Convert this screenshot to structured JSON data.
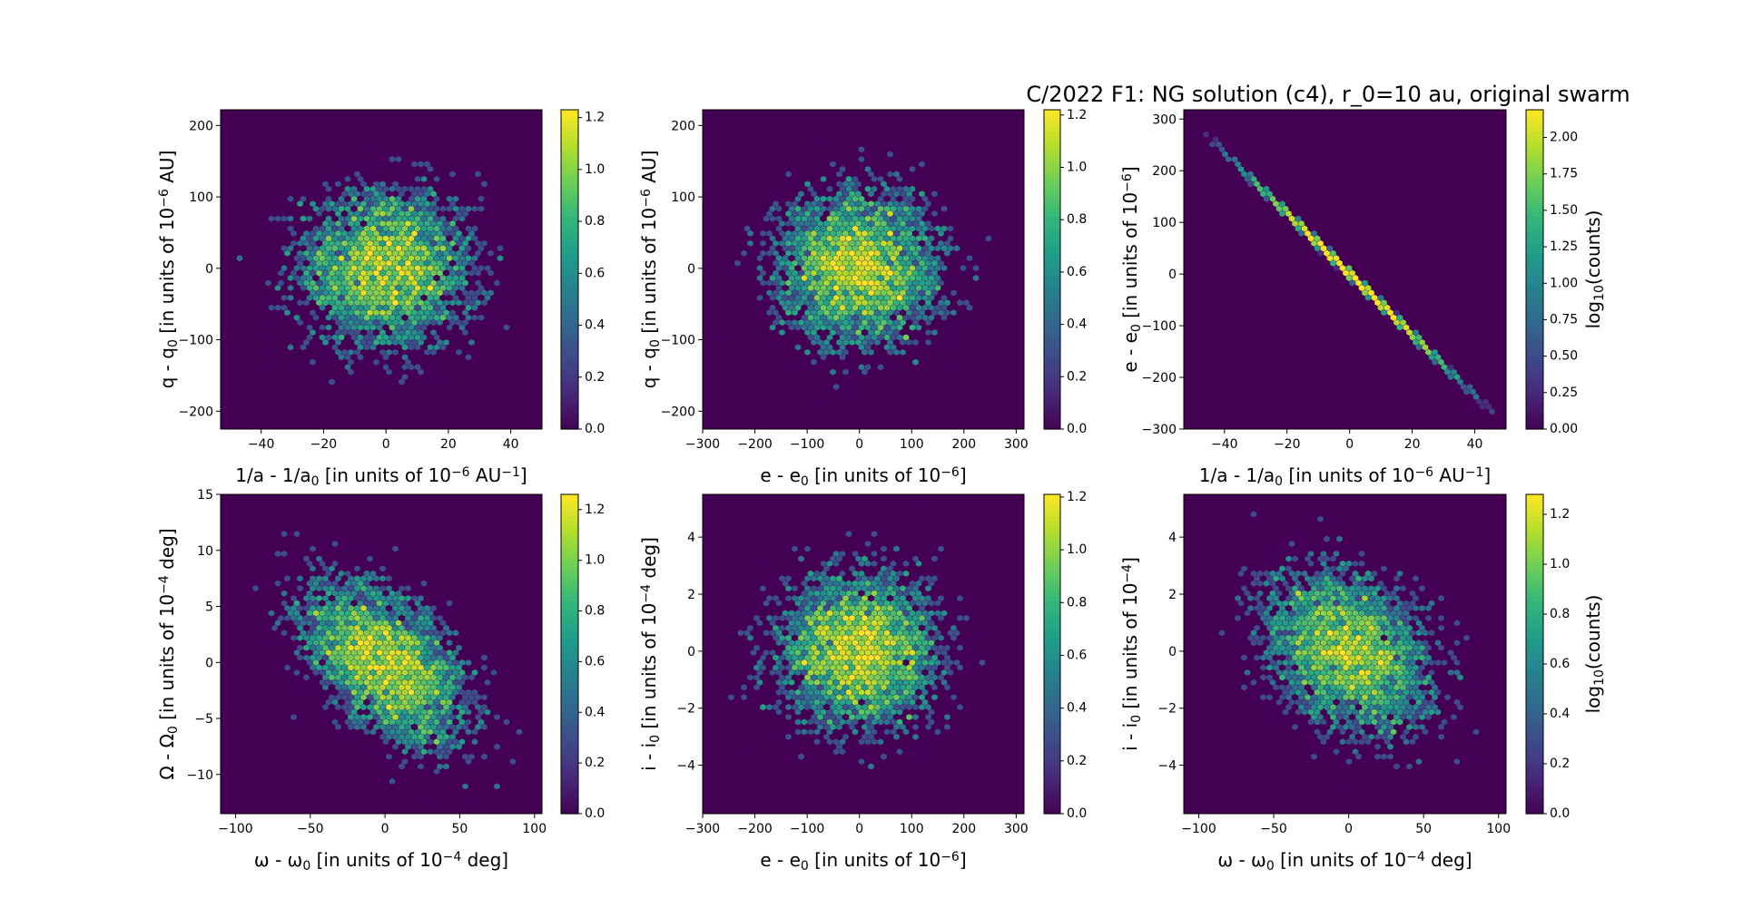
{
  "title": "C/2022 F1: NG solution (c4), r_0=10 au, original swarm",
  "colors": {
    "colormap": "viridis",
    "background": "#440154"
  },
  "chart_data": [
    {
      "type": "heatmap",
      "subtype": "hexbin",
      "xlabel": [
        [
          "1/a - 1/a",
          ""
        ],
        [
          "0",
          "sub"
        ],
        [
          " [in units of 10",
          ""
        ],
        [
          "−6",
          "sup"
        ],
        [
          " AU",
          ""
        ],
        [
          "−1",
          "sup"
        ],
        [
          "]",
          ""
        ]
      ],
      "ylabel": [
        [
          "q - q",
          ""
        ],
        [
          "0",
          "sub"
        ],
        [
          " [in units of 10",
          ""
        ],
        [
          "−6",
          "sup"
        ],
        [
          " AU]",
          ""
        ]
      ],
      "xlim": [
        -53,
        50
      ],
      "ylim": [
        -225,
        222
      ],
      "xticks": [
        "-40",
        "-20",
        "0",
        "20",
        "40"
      ],
      "yticks": [
        "-200",
        "-100",
        "0",
        "100",
        "200"
      ],
      "distribution": {
        "x_center": 0,
        "y_center": 0,
        "x_std": 15,
        "y_std": 60,
        "correlation": 0
      },
      "colorbar": {
        "range": [
          0,
          1.23
        ],
        "ticks": [
          "0.0",
          "0.2",
          "0.4",
          "0.6",
          "0.8",
          "1.0",
          "1.2"
        ],
        "label": []
      }
    },
    {
      "type": "heatmap",
      "subtype": "hexbin",
      "xlabel": [
        [
          "e - e",
          ""
        ],
        [
          "0",
          "sub"
        ],
        [
          " [in units of 10",
          ""
        ],
        [
          "−6",
          "sup"
        ],
        [
          "]",
          ""
        ]
      ],
      "ylabel": [
        [
          "q - q",
          ""
        ],
        [
          "0",
          "sub"
        ],
        [
          " [in units of 10",
          ""
        ],
        [
          "−6",
          "sup"
        ],
        [
          " AU]",
          ""
        ]
      ],
      "xlim": [
        -300,
        315
      ],
      "ylim": [
        -225,
        222
      ],
      "xticks": [
        "-300",
        "-200",
        "-100",
        "0",
        "100",
        "200",
        "300"
      ],
      "yticks": [
        "-200",
        "-100",
        "0",
        "100",
        "200"
      ],
      "distribution": {
        "x_center": 0,
        "y_center": 0,
        "x_std": 85,
        "y_std": 60,
        "correlation": 0
      },
      "colorbar": {
        "range": [
          0,
          1.22
        ],
        "ticks": [
          "0.0",
          "0.2",
          "0.4",
          "0.6",
          "0.8",
          "1.0",
          "1.2"
        ],
        "label": []
      }
    },
    {
      "type": "heatmap",
      "subtype": "hexbin",
      "xlabel": [
        [
          "1/a - 1/a",
          ""
        ],
        [
          "0",
          "sub"
        ],
        [
          " [in units of 10",
          ""
        ],
        [
          "−6",
          "sup"
        ],
        [
          " AU",
          ""
        ],
        [
          "−1",
          "sup"
        ],
        [
          "]",
          ""
        ]
      ],
      "ylabel": [
        [
          "e - e",
          ""
        ],
        [
          "0",
          "sub"
        ],
        [
          " [in units of 10",
          ""
        ],
        [
          "−6",
          "sup"
        ],
        [
          "]",
          ""
        ]
      ],
      "xlim": [
        -53,
        50
      ],
      "ylim": [
        -300,
        318
      ],
      "xticks": [
        "-40",
        "-20",
        "0",
        "20",
        "40"
      ],
      "yticks": [
        "-300",
        "-200",
        "-100",
        "0",
        "100",
        "200",
        "300"
      ],
      "distribution": {
        "x_center": 0,
        "y_center": 0,
        "x_std": 15,
        "y_std": 88,
        "correlation": -1
      },
      "colorbar": {
        "range": [
          0,
          2.19
        ],
        "ticks": [
          "0.00",
          "0.25",
          "0.50",
          "0.75",
          "1.00",
          "1.25",
          "1.50",
          "1.75",
          "2.00"
        ],
        "label": [
          [
            "log",
            ""
          ],
          [
            "10",
            "sub"
          ],
          [
            "(counts)",
            ""
          ]
        ]
      }
    },
    {
      "type": "heatmap",
      "subtype": "hexbin",
      "xlabel": [
        [
          "ω - ω",
          ""
        ],
        [
          "0",
          "sub"
        ],
        [
          " [in units of 10",
          ""
        ],
        [
          "−4",
          "sup"
        ],
        [
          " deg]",
          ""
        ]
      ],
      "ylabel": [
        [
          "Ω - Ω",
          ""
        ],
        [
          "0",
          "sub"
        ],
        [
          " [in units of 10",
          ""
        ],
        [
          "−4",
          "sup"
        ],
        [
          " deg]",
          ""
        ]
      ],
      "xlim": [
        -110,
        105
      ],
      "ylim": [
        -13.5,
        15
      ],
      "xticks": [
        "-100",
        "-50",
        "0",
        "50",
        "100"
      ],
      "yticks": [
        "-10",
        "-5",
        "0",
        "5",
        "10",
        "15"
      ],
      "distribution": {
        "x_center": 0,
        "y_center": 0,
        "x_std": 30,
        "y_std": 4,
        "correlation": -0.5
      },
      "colorbar": {
        "range": [
          0,
          1.26
        ],
        "ticks": [
          "0.0",
          "0.2",
          "0.4",
          "0.6",
          "0.8",
          "1.0",
          "1.2"
        ],
        "label": []
      }
    },
    {
      "type": "heatmap",
      "subtype": "hexbin",
      "xlabel": [
        [
          "e - e",
          ""
        ],
        [
          "0",
          "sub"
        ],
        [
          " [in units of 10",
          ""
        ],
        [
          "−6",
          "sup"
        ],
        [
          "]",
          ""
        ]
      ],
      "ylabel": [
        [
          "i - i",
          ""
        ],
        [
          "0",
          "sub"
        ],
        [
          " [in units of 10",
          ""
        ],
        [
          "−4",
          "sup"
        ],
        [
          " deg]",
          ""
        ]
      ],
      "xlim": [
        -300,
        315
      ],
      "ylim": [
        -5.7,
        5.5
      ],
      "xticks": [
        "-300",
        "-200",
        "-100",
        "0",
        "100",
        "200",
        "300"
      ],
      "yticks": [
        "-4",
        "-2",
        "0",
        "2",
        "4"
      ],
      "distribution": {
        "x_center": 0,
        "y_center": 0,
        "x_std": 85,
        "y_std": 1.5,
        "correlation": 0
      },
      "colorbar": {
        "range": [
          0,
          1.21
        ],
        "ticks": [
          "0.0",
          "0.2",
          "0.4",
          "0.6",
          "0.8",
          "1.0",
          "1.2"
        ],
        "label": []
      }
    },
    {
      "type": "heatmap",
      "subtype": "hexbin",
      "xlabel": [
        [
          "ω - ω",
          ""
        ],
        [
          "0",
          "sub"
        ],
        [
          " [in units of 10",
          ""
        ],
        [
          "−4",
          "sup"
        ],
        [
          " deg]",
          ""
        ]
      ],
      "ylabel": [
        [
          "i - i",
          ""
        ],
        [
          "0",
          "sub"
        ],
        [
          " [in units of 10",
          ""
        ],
        [
          "−4",
          "sup"
        ],
        [
          "]",
          ""
        ]
      ],
      "xlim": [
        -110,
        105
      ],
      "ylim": [
        -5.7,
        5.5
      ],
      "xticks": [
        "-100",
        "-50",
        "0",
        "50",
        "100"
      ],
      "yticks": [
        "-4",
        "-2",
        "0",
        "2",
        "4"
      ],
      "distribution": {
        "x_center": 0,
        "y_center": 0,
        "x_std": 30,
        "y_std": 1.5,
        "correlation": -0.3
      },
      "colorbar": {
        "range": [
          0,
          1.28
        ],
        "ticks": [
          "0.0",
          "0.2",
          "0.4",
          "0.6",
          "0.8",
          "1.0",
          "1.2"
        ],
        "label": [
          [
            "log",
            ""
          ],
          [
            "10",
            "sub"
          ],
          [
            "(counts)",
            ""
          ]
        ]
      }
    }
  ]
}
